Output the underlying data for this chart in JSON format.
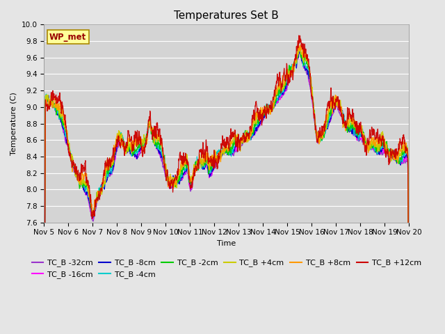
{
  "title": "Temperatures Set B",
  "xlabel": "Time",
  "ylabel": "Temperature (C)",
  "ylim": [
    7.6,
    10.0
  ],
  "start_day": 5,
  "end_day": 20,
  "xtick_labels": [
    "Nov 5",
    "Nov 6",
    "Nov 7",
    "Nov 8",
    "Nov 9",
    "Nov 10",
    "Nov 11",
    "Nov 12",
    "Nov 13",
    "Nov 14",
    "Nov 15",
    "Nov 16",
    "Nov 17",
    "Nov 18",
    "Nov 19",
    "Nov 20"
  ],
  "wp_met_label": "WP_met",
  "series_labels": [
    "TC_B -32cm",
    "TC_B -16cm",
    "TC_B -8cm",
    "TC_B -4cm",
    "TC_B -2cm",
    "TC_B +4cm",
    "TC_B +8cm",
    "TC_B +12cm"
  ],
  "series_colors": [
    "#9933CC",
    "#FF00FF",
    "#0000CC",
    "#00CCCC",
    "#00CC00",
    "#CCCC00",
    "#FF9900",
    "#CC0000"
  ],
  "background_color": "#E5E5E5",
  "plot_bg_color": "#D4D4D4",
  "wp_met_bg": "#FFFF99",
  "wp_met_border": "#AA8800",
  "wp_met_text_color": "#990000",
  "grid_color": "#FFFFFF",
  "title_fontsize": 11,
  "label_fontsize": 8,
  "tick_fontsize": 7.5,
  "legend_fontsize": 8,
  "linewidth": 0.9
}
